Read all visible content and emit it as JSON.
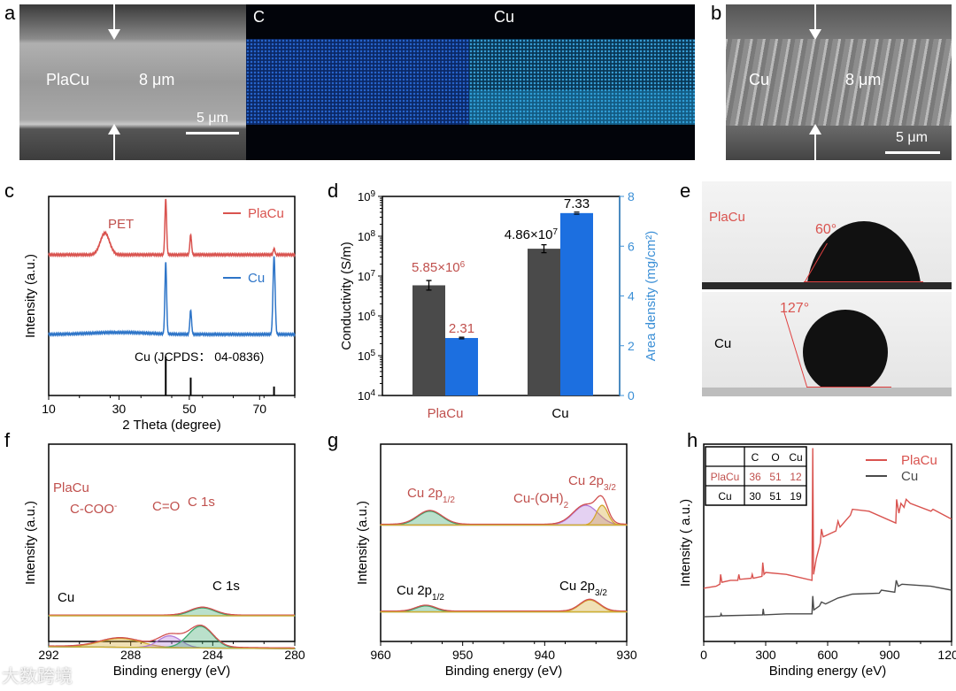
{
  "panels": {
    "a": "a",
    "b": "b",
    "c": "c",
    "d": "d",
    "e": "e",
    "f": "f",
    "g": "g",
    "h": "h"
  },
  "sem_a": {
    "sample": "PlaCu",
    "thickness": "8 μm",
    "scale": "5 μm"
  },
  "map_c": {
    "label": "C"
  },
  "map_cu": {
    "label": "Cu"
  },
  "sem_b": {
    "sample": "Cu",
    "thickness": "8 μm",
    "scale": "5 μm"
  },
  "contact_angle": {
    "top": {
      "sample": "PlaCu",
      "angle": "60°",
      "value": 60
    },
    "bottom": {
      "sample": "Cu",
      "angle": "127°",
      "value": 127
    }
  },
  "watermark": "大数跨境",
  "colors": {
    "red": "#d9534f",
    "blue": "#2e75c8",
    "grey": "#4a4a4a",
    "barblue": "#1c6fe0",
    "axisblue": "#3b8fd6"
  },
  "chart_data": [
    {
      "id": "c",
      "type": "line",
      "xlabel": "2 Theta (degree)",
      "ylabel": "Intensity (a.u.)",
      "xlim": [
        10,
        80
      ],
      "ylim": [
        0,
        100
      ],
      "xticks": [
        "10",
        "30",
        "50",
        "70"
      ],
      "xtick_values": [
        10,
        30,
        50,
        70
      ],
      "annotation": "PET",
      "ref_label": "Cu (JCPDS： 04-0836)",
      "series": [
        {
          "name": "PlaCu",
          "color": "#d9534f",
          "baseline": 70.7,
          "peaks": [
            [
              26,
              11,
              1.3
            ],
            [
              43.3,
              28,
              0.25
            ],
            [
              50.4,
              10,
              0.25
            ],
            [
              74.1,
              3,
              0.25
            ]
          ]
        },
        {
          "name": "Cu",
          "color": "#2e75c8",
          "baseline": 30.7,
          "peaks": [
            [
              30,
              1,
              8
            ],
            [
              43.3,
              36,
              0.25
            ],
            [
              50.4,
              12,
              0.25
            ],
            [
              74.1,
              39,
              0.3
            ]
          ]
        }
      ],
      "reference_sticks": [
        [
          43.3,
          19.5
        ],
        [
          50.4,
          9
        ],
        [
          74.1,
          4.5
        ]
      ]
    },
    {
      "id": "d",
      "type": "bar",
      "categories": [
        "PlaCu",
        "Cu"
      ],
      "ylabel": "Conductivity (S/m)",
      "y2label": "Area density (mg/cm²)",
      "yscale": "log",
      "ylim": [
        10000,
        1000000000
      ],
      "yticks": [
        "10",
        "10",
        "10",
        "10",
        "10",
        "10"
      ],
      "ytick_exp": [
        "4",
        "5",
        "6",
        "7",
        "8",
        "9"
      ],
      "y2lim": [
        0,
        8
      ],
      "y2ticks": [
        "0",
        "2",
        "4",
        "6",
        "8"
      ],
      "series": [
        {
          "name": "Conductivity",
          "axis": "left",
          "values": [
            5850000,
            48600000
          ],
          "errors": [
            0.12,
            0.1
          ],
          "labels": [
            "5.85×10",
            "4.86×10"
          ],
          "label_exp": [
            "6",
            "7"
          ]
        },
        {
          "name": "Area density",
          "axis": "right",
          "values": [
            2.31,
            7.33
          ],
          "errors": [
            0.03,
            0.04
          ],
          "labels": [
            "2.31",
            "7.33"
          ]
        }
      ]
    },
    {
      "id": "f",
      "type": "area",
      "xlabel": "Binding energy (eV)",
      "ylabel": "Intensity (a.u.)",
      "xlim": [
        292,
        280
      ],
      "ylim": [
        0,
        100
      ],
      "xticks": [
        "292",
        "288",
        "284",
        "280"
      ],
      "xtick_values": [
        292,
        288,
        284,
        280
      ],
      "labels": {
        "top": "PlaCu",
        "c1s": "C 1s",
        "co": "C=O",
        "ccoo": "C-COO",
        "ccoo_sup": "-",
        "bottom": "Cu",
        "c1s_b": "C 1s"
      },
      "series": [
        {
          "name": "PlaCu",
          "baseline": 53,
          "components": [
            {
              "name": "C-COO-",
              "center": 288.5,
              "amp": 4.5,
              "sigma": 1.0,
              "color": "#d4a52c"
            },
            {
              "name": "C=O",
              "center": 286.1,
              "amp": 6,
              "sigma": 0.55,
              "color": "#b27ad9"
            },
            {
              "name": "C 1s",
              "center": 284.6,
              "amp": 11,
              "sigma": 0.6,
              "color": "#3aa56a"
            }
          ]
        },
        {
          "name": "Cu",
          "baseline": 13,
          "components": [
            {
              "name": "C 1s",
              "center": 284.5,
              "amp": 4,
              "sigma": 0.6,
              "color": "#3aa56a"
            }
          ]
        }
      ]
    },
    {
      "id": "g",
      "type": "area",
      "xlabel": "Binding energy (eV)",
      "ylabel": "Intensity (a.u.)",
      "xlim": [
        960,
        930
      ],
      "ylim": [
        0,
        100
      ],
      "xticks": [
        "960",
        "950",
        "940",
        "930"
      ],
      "xtick_values": [
        960,
        950,
        940,
        930
      ],
      "labels": {
        "top_p12": "Cu 2p",
        "top_p12_sub": "1/2",
        "top_p32": "Cu 2p",
        "top_p32_sub": "3/2",
        "oh": "Cu-(OH)",
        "oh_sub": "2",
        "bot_p12": "Cu 2p",
        "bot_p12_sub": "1/2",
        "bot_p32": "Cu 2p",
        "bot_p32_sub": "3/2"
      },
      "series": [
        {
          "name": "PlaCu",
          "baseline": 59,
          "components": [
            {
              "name": "Cu 2p1/2",
              "center": 954,
              "amp": 7,
              "sigma": 1.5,
              "color": "#3aa56a"
            },
            {
              "name": "Cu-(OH)2",
              "center": 935,
              "amp": 10,
              "sigma": 1.5,
              "color": "#b27ad9"
            },
            {
              "name": "Cu 2p3/2",
              "center": 933,
              "amp": 10,
              "sigma": 0.7,
              "color": "#d4a52c"
            }
          ]
        },
        {
          "name": "Cu",
          "baseline": 15,
          "components": [
            {
              "name": "Cu 2p1/2",
              "center": 954.5,
              "amp": 3,
              "sigma": 1.2,
              "color": "#3aa56a"
            },
            {
              "name": "Cu 2p3/2",
              "center": 934.5,
              "amp": 6,
              "sigma": 1.2,
              "color": "#d4a52c"
            }
          ]
        }
      ]
    },
    {
      "id": "h",
      "type": "line",
      "xlabel": "Binding energy (eV)",
      "ylabel": "Intensity ( a.u.)",
      "xlim": [
        0,
        1200
      ],
      "ylim": [
        0,
        100
      ],
      "xticks": [
        "0",
        "300",
        "600",
        "900",
        "1200"
      ],
      "xtick_values": [
        0,
        300,
        600,
        900,
        1200
      ],
      "legend": [
        "PlaCu",
        "Cu"
      ],
      "legend_position": "top-right",
      "table": {
        "header": [
          "",
          "C",
          "O",
          "Cu"
        ],
        "rows": [
          [
            "PlaCu",
            "36",
            "51",
            "12"
          ],
          [
            "Cu",
            "30",
            "51",
            "19"
          ]
        ]
      },
      "series": [
        {
          "name": "PlaCu",
          "color": "#d9534f",
          "points": [
            [
              0,
              27
            ],
            [
              60,
              28
            ],
            [
              78,
              29
            ],
            [
              82,
              34
            ],
            [
              88,
              30
            ],
            [
              130,
              31
            ],
            [
              165,
              31
            ],
            [
              170,
              34
            ],
            [
              175,
              31.5
            ],
            [
              230,
              32
            ],
            [
              235,
              34
            ],
            [
              240,
              32
            ],
            [
              282,
              33
            ],
            [
              286,
              40
            ],
            [
              292,
              34
            ],
            [
              300,
              35
            ],
            [
              400,
              34
            ],
            [
              524,
              31
            ],
            [
              528,
              98
            ],
            [
              532,
              34
            ],
            [
              545,
              42
            ],
            [
              565,
              50
            ],
            [
              570,
              57
            ],
            [
              578,
              53
            ],
            [
              640,
              56
            ],
            [
              650,
              61
            ],
            [
              660,
              58
            ],
            [
              710,
              64
            ],
            [
              720,
              67
            ],
            [
              800,
              66
            ],
            [
              930,
              60
            ],
            [
              934,
              72
            ],
            [
              945,
              65
            ],
            [
              955,
              70
            ],
            [
              970,
              68
            ],
            [
              980,
              72
            ],
            [
              1000,
              70
            ],
            [
              1100,
              66
            ],
            [
              1110,
              67
            ],
            [
              1200,
              62
            ]
          ]
        },
        {
          "name": "Cu",
          "color": "#4a4a4a",
          "points": [
            [
              0,
              12.5
            ],
            [
              80,
              12.8
            ],
            [
              84,
              14
            ],
            [
              88,
              13
            ],
            [
              285,
              13.5
            ],
            [
              288,
              16.5
            ],
            [
              292,
              13.5
            ],
            [
              400,
              14
            ],
            [
              524,
              14
            ],
            [
              528,
              23
            ],
            [
              533,
              16
            ],
            [
              560,
              18
            ],
            [
              570,
              20
            ],
            [
              590,
              19
            ],
            [
              650,
              22
            ],
            [
              720,
              24
            ],
            [
              850,
              24.5
            ],
            [
              860,
              26
            ],
            [
              925,
              25
            ],
            [
              932,
              31
            ],
            [
              942,
              28
            ],
            [
              960,
              29
            ],
            [
              1100,
              28
            ],
            [
              1200,
              26
            ]
          ]
        }
      ]
    }
  ]
}
